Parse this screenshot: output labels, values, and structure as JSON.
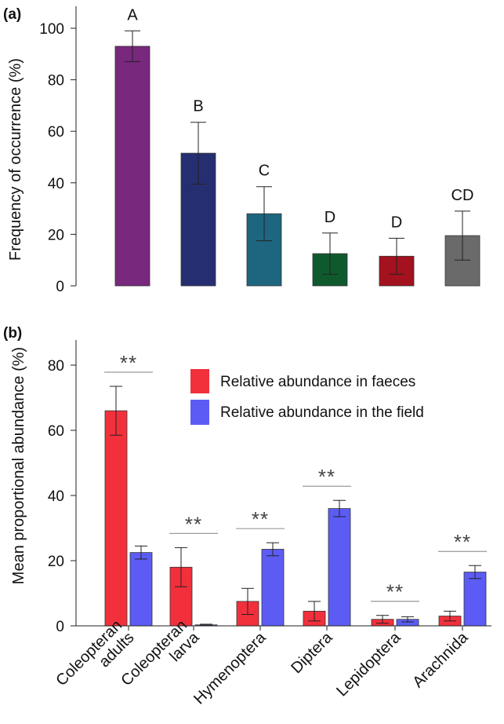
{
  "chart_data": [
    {
      "panel": "(a)",
      "type": "bar",
      "ylabel": "Frequency of occurrence (%)",
      "ylim": [
        0,
        108
      ],
      "yticks": [
        0,
        20,
        40,
        60,
        80,
        100
      ],
      "grid": false,
      "bars": [
        {
          "value": 93,
          "err": 6,
          "letter": "A",
          "color": "#78287d"
        },
        {
          "value": 51.5,
          "err": 12,
          "letter": "B",
          "color": "#262e72"
        },
        {
          "value": 28,
          "err": 10.5,
          "letter": "C",
          "color": "#1e6680"
        },
        {
          "value": 12.5,
          "err": 8,
          "letter": "D",
          "color": "#0f5a2d"
        },
        {
          "value": 11.5,
          "err": 7,
          "letter": "D",
          "color": "#a3121e"
        },
        {
          "value": 19.5,
          "err": 9.5,
          "letter": "CD",
          "color": "#6a6a6a"
        }
      ]
    },
    {
      "panel": "(b)",
      "type": "bar",
      "ylabel": "Mean proportional abundance (%)",
      "ylim": [
        0,
        90
      ],
      "yticks": [
        0,
        20,
        40,
        60,
        80
      ],
      "grid": false,
      "legend_position": "top-right",
      "categories": [
        "Coleopteran adults",
        "Coleopteran larva",
        "Hymenoptera",
        "Diptera",
        "Lepidoptera",
        "Arachnida"
      ],
      "significance": [
        "**",
        "**",
        "**",
        "**",
        "**",
        "**"
      ],
      "series": [
        {
          "name": "Relative abundance in faeces",
          "color": "#f2303c",
          "values": [
            66,
            18,
            7.5,
            4.5,
            2,
            3
          ],
          "errors": [
            7.5,
            6,
            4,
            3,
            1.2,
            1.5
          ]
        },
        {
          "name": "Relative abundance in the field",
          "color": "#5c5cf5",
          "values": [
            22.5,
            0.3,
            23.5,
            36,
            2,
            16.5
          ],
          "errors": [
            2,
            0.2,
            2,
            2.5,
            0.8,
            2
          ]
        }
      ]
    }
  ]
}
